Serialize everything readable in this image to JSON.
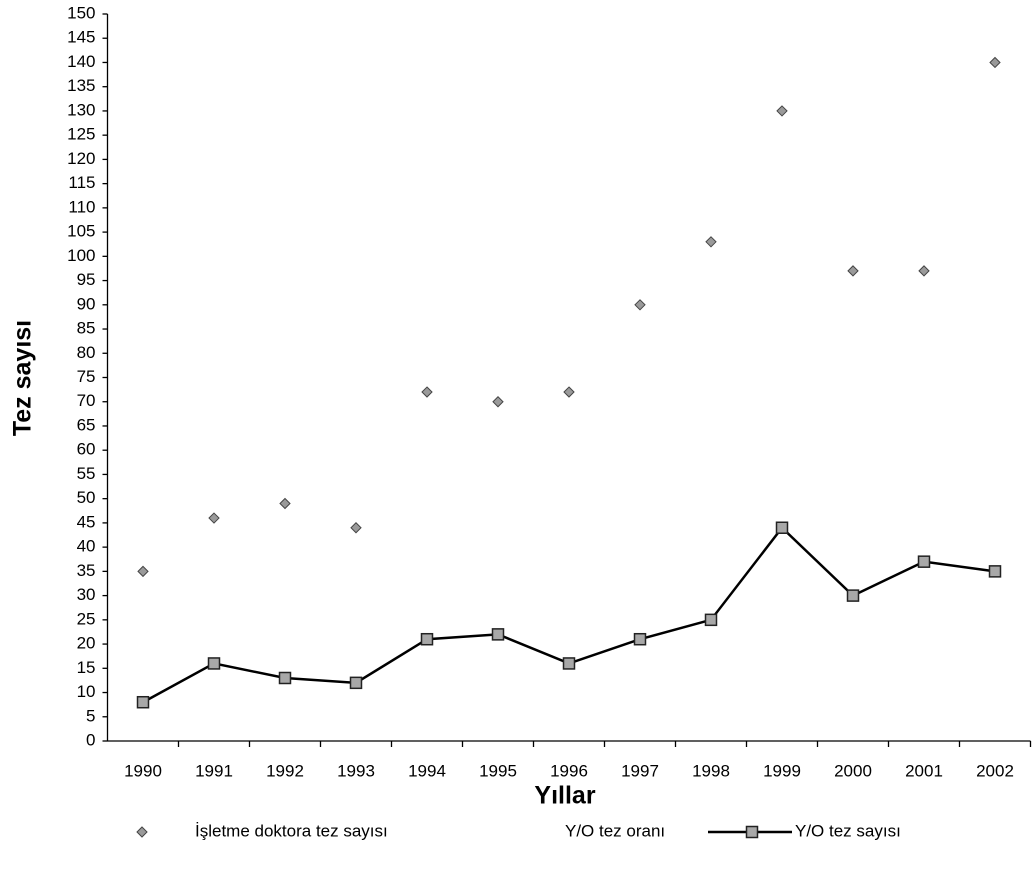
{
  "chart_data": {
    "type": "line",
    "y_label": "Tez sayısı",
    "x_label": "Yıllar",
    "categories": [
      "1990",
      "1991",
      "1992",
      "1993",
      "1994",
      "1995",
      "1996",
      "1997",
      "1998",
      "1999",
      "2000",
      "2001",
      "2002"
    ],
    "series": [
      {
        "name": "İşletme doktora tez sayısı",
        "color": "#9a9a9a",
        "marker": "diamond",
        "line": false,
        "values": [
          35,
          46,
          49,
          44,
          72,
          70,
          72,
          90,
          103,
          130,
          97,
          97,
          140
        ]
      },
      {
        "name": "Y/O tez oranı",
        "color": "#000000",
        "marker": "none",
        "line": false,
        "values": [
          null,
          null,
          null,
          null,
          null,
          null,
          null,
          null,
          null,
          null,
          null,
          null,
          null
        ]
      },
      {
        "name": "Y/O tez sayısı",
        "color": "#000000",
        "marker": "square",
        "line": true,
        "values": [
          8,
          16,
          13,
          12,
          21,
          22,
          16,
          21,
          25,
          44,
          30,
          37,
          35
        ]
      }
    ],
    "ylim": [
      0,
      150
    ],
    "yticks": [
      0,
      5,
      10,
      15,
      20,
      25,
      30,
      35,
      40,
      45,
      50,
      55,
      60,
      65,
      70,
      75,
      80,
      85,
      90,
      95,
      100,
      105,
      110,
      115,
      120,
      125,
      130,
      135,
      140,
      145,
      150
    ],
    "grid": false,
    "legend": "bottom"
  }
}
